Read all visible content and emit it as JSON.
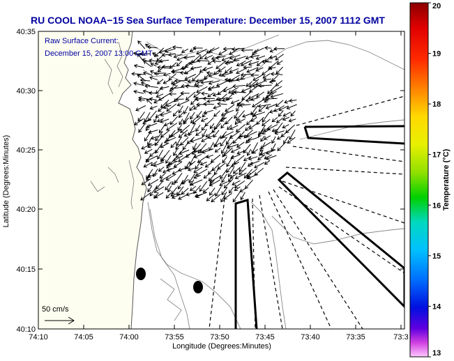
{
  "title": "RU COOL  NOAA−15  Sea Surface Temperature:  December 15, 2007 1112 GMT",
  "annotation": {
    "line1": "Raw Surface Current:",
    "line2": "December 15, 2007 13:00 GMT"
  },
  "scale_arrow_label": "50 cm/s",
  "axes": {
    "xlabel": "Longitude (Degrees:Minutes)",
    "ylabel": "Latitude (Degrees:Minutes)",
    "x_ticks": [
      "74:10",
      "74:05",
      "74:00",
      "73:55",
      "73:50",
      "73:45",
      "73:40",
      "73:35",
      "73:3"
    ],
    "y_ticks": [
      "40:35",
      "40:30",
      "40:25",
      "40:20",
      "40:15",
      "40:10"
    ]
  },
  "colorbar": {
    "label": "Temperature (°C)",
    "ticks": [
      "20",
      "19",
      "18",
      "17",
      "16",
      "15",
      "14",
      "13"
    ],
    "min": 13,
    "max": 20
  },
  "colors": {
    "title": "#0000a0",
    "land": "#fefef0",
    "water": "#ffffff",
    "arrows": "#000000"
  }
}
